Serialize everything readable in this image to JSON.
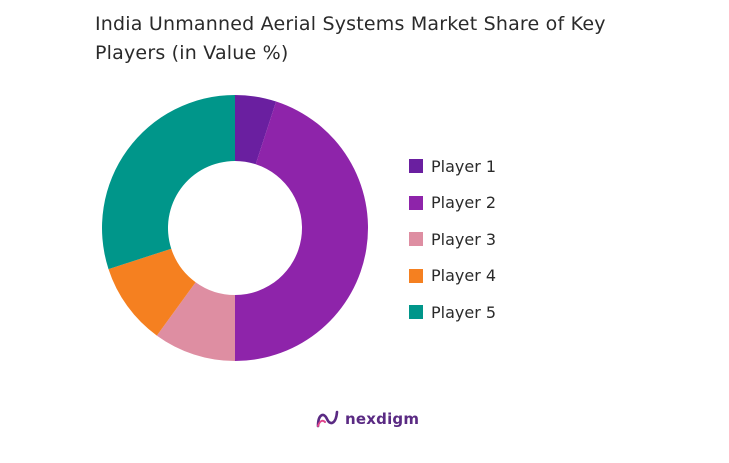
{
  "title_line1": "India Unmanned Aerial Systems Market Share of Key",
  "title_line2": "Players (in Value %)",
  "brand": {
    "name": "nexdigm",
    "logo_icon": "nexdigm-logo-icon",
    "color": "#5a2a83"
  },
  "chart_data": {
    "type": "donut",
    "title": "India Unmanned Aerial Systems Market Share of Key Players (in Value %)",
    "unit": "%",
    "categories": [
      "Player 1",
      "Player 2",
      "Player 3",
      "Player 4",
      "Player 5"
    ],
    "values": [
      5,
      45,
      10,
      10,
      30
    ],
    "colors": [
      "#6a1fa0",
      "#8e24aa",
      "#de8ea2",
      "#f58020",
      "#00968a"
    ],
    "legend": "right",
    "direction": "clockwise-from-top"
  }
}
